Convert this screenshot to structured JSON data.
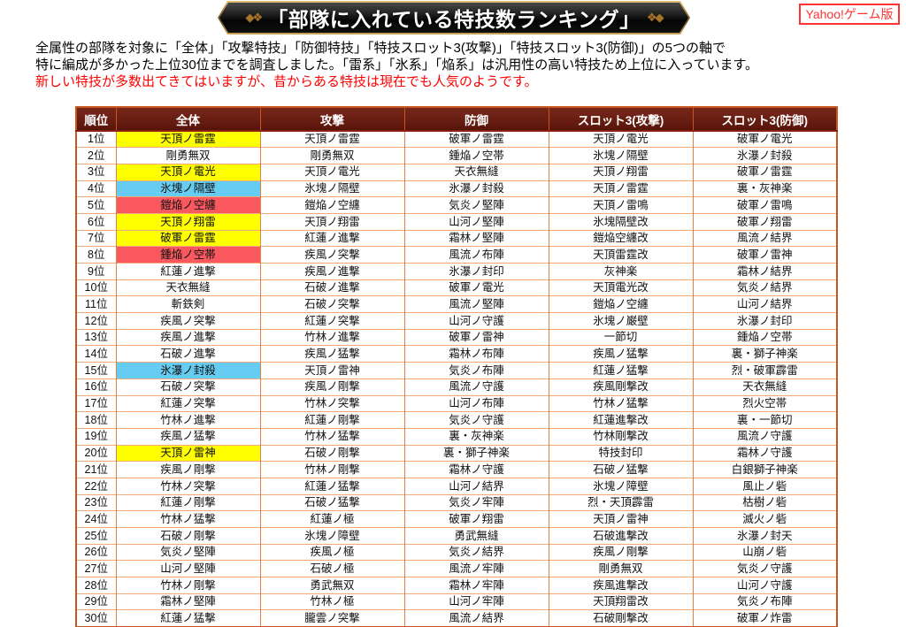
{
  "banner": {
    "title": "「部隊に入れている特技数ランキング」",
    "left_ornament": "◆❖",
    "right_ornament": "❖◆",
    "badge": "Yahoo!ゲーム版"
  },
  "intro": {
    "line1": "全属性の部隊を対象に「全体」「攻撃特技」「防御特技」「特技スロット3(攻撃)」「特技スロット3(防御)」の5つの軸で",
    "line2": "特に編成が多かった上位30位までを調査しました。「雷系」「氷系」「焔系」は汎用性の高い特技ため上位に入っています。",
    "line3": "新しい特技が多数出てきてはいますが、昔からある特技は現在でも人気のようです。"
  },
  "colors": {
    "header_bg": "#641b10",
    "border_outer": "#c8571f",
    "border_vertical": "#e07f40",
    "border_horizontal": "#f2ab76",
    "badge_red": "#ff3333",
    "intro_red": "#ff0000",
    "highlight_yellow": "#ffff00",
    "highlight_blue": "#66ccf2",
    "highlight_red": "#f8585e"
  },
  "table": {
    "headers": [
      "順位",
      "全体",
      "攻撃",
      "防御",
      "スロット3(攻撃)",
      "スロット3(防御)"
    ],
    "rows": [
      {
        "rank": "1位",
        "overall": "天頂ノ雷霆",
        "highlight": "yellow",
        "attack": "天頂ノ雷霆",
        "defense": "破軍ノ雷霆",
        "slot3_attack": "天頂ノ電光",
        "slot3_defense": "破軍ノ電光"
      },
      {
        "rank": "2位",
        "overall": "剛勇無双",
        "highlight": "",
        "attack": "剛勇無双",
        "defense": "鍾焔ノ空帯",
        "slot3_attack": "氷塊ノ隔壁",
        "slot3_defense": "氷瀑ノ封殺"
      },
      {
        "rank": "3位",
        "overall": "天頂ノ電光",
        "highlight": "yellow",
        "attack": "天頂ノ電光",
        "defense": "天衣無縫",
        "slot3_attack": "天頂ノ翔雷",
        "slot3_defense": "破軍ノ雷霆"
      },
      {
        "rank": "4位",
        "overall": "氷塊ノ隔壁",
        "highlight": "blue",
        "attack": "氷塊ノ隔壁",
        "defense": "氷瀑ノ封殺",
        "slot3_attack": "天頂ノ雷霆",
        "slot3_defense": "裏・灰神楽"
      },
      {
        "rank": "5位",
        "overall": "鎧焔ノ空纏",
        "highlight": "red",
        "attack": "鎧焔ノ空纏",
        "defense": "気炎ノ堅陣",
        "slot3_attack": "天頂ノ雷鳴",
        "slot3_defense": "破軍ノ雷鳴"
      },
      {
        "rank": "6位",
        "overall": "天頂ノ翔雷",
        "highlight": "yellow",
        "attack": "天頂ノ翔雷",
        "defense": "山河ノ堅陣",
        "slot3_attack": "氷塊隔壁改",
        "slot3_defense": "破軍ノ翔雷"
      },
      {
        "rank": "7位",
        "overall": "破軍ノ雷霆",
        "highlight": "yellow",
        "attack": "紅蓮ノ進撃",
        "defense": "霜林ノ堅陣",
        "slot3_attack": "鎧焔空纏改",
        "slot3_defense": "風流ノ結界"
      },
      {
        "rank": "8位",
        "overall": "鍾焔ノ空帯",
        "highlight": "red",
        "attack": "疾風ノ突撃",
        "defense": "風流ノ布陣",
        "slot3_attack": "天頂雷霆改",
        "slot3_defense": "破軍ノ雷神"
      },
      {
        "rank": "9位",
        "overall": "紅蓮ノ進撃",
        "highlight": "",
        "attack": "疾風ノ進撃",
        "defense": "氷瀑ノ封印",
        "slot3_attack": "灰神楽",
        "slot3_defense": "霜林ノ結界"
      },
      {
        "rank": "10位",
        "overall": "天衣無縫",
        "highlight": "",
        "attack": "石破ノ進撃",
        "defense": "破軍ノ電光",
        "slot3_attack": "天頂電光改",
        "slot3_defense": "気炎ノ結界"
      },
      {
        "rank": "11位",
        "overall": "斬鉄剣",
        "highlight": "",
        "attack": "石破ノ突撃",
        "defense": "風流ノ堅陣",
        "slot3_attack": "鎧焔ノ空纏",
        "slot3_defense": "山河ノ結界"
      },
      {
        "rank": "12位",
        "overall": "疾風ノ突撃",
        "highlight": "",
        "attack": "紅蓮ノ突撃",
        "defense": "山河ノ守護",
        "slot3_attack": "氷塊ノ巌壁",
        "slot3_defense": "氷瀑ノ封印"
      },
      {
        "rank": "13位",
        "overall": "疾風ノ進撃",
        "highlight": "",
        "attack": "竹林ノ進撃",
        "defense": "破軍ノ雷神",
        "slot3_attack": "一節切",
        "slot3_defense": "鍾焔ノ空帯"
      },
      {
        "rank": "14位",
        "overall": "石破ノ進撃",
        "highlight": "",
        "attack": "疾風ノ猛撃",
        "defense": "霜林ノ布陣",
        "slot3_attack": "疾風ノ猛撃",
        "slot3_defense": "裏・獅子神楽"
      },
      {
        "rank": "15位",
        "overall": "氷瀑ノ封殺",
        "highlight": "blue",
        "attack": "天頂ノ雷神",
        "defense": "気炎ノ布陣",
        "slot3_attack": "紅蓮ノ猛撃",
        "slot3_defense": "烈・破軍霹雷"
      },
      {
        "rank": "16位",
        "overall": "石破ノ突撃",
        "highlight": "",
        "attack": "疾風ノ剛撃",
        "defense": "風流ノ守護",
        "slot3_attack": "疾風剛撃改",
        "slot3_defense": "天衣無縫"
      },
      {
        "rank": "17位",
        "overall": "紅蓮ノ突撃",
        "highlight": "",
        "attack": "竹林ノ突撃",
        "defense": "山河ノ布陣",
        "slot3_attack": "竹林ノ猛撃",
        "slot3_defense": "烈火空帯"
      },
      {
        "rank": "18位",
        "overall": "竹林ノ進撃",
        "highlight": "",
        "attack": "紅蓮ノ剛撃",
        "defense": "気炎ノ守護",
        "slot3_attack": "紅蓮進撃改",
        "slot3_defense": "裏・一節切"
      },
      {
        "rank": "19位",
        "overall": "疾風ノ猛撃",
        "highlight": "",
        "attack": "竹林ノ猛撃",
        "defense": "裏・灰神楽",
        "slot3_attack": "竹林剛撃改",
        "slot3_defense": "風流ノ守護"
      },
      {
        "rank": "20位",
        "overall": "天頂ノ雷神",
        "highlight": "yellow",
        "attack": "石破ノ剛撃",
        "defense": "裏・獅子神楽",
        "slot3_attack": "特技封印",
        "slot3_defense": "霜林ノ守護"
      },
      {
        "rank": "21位",
        "overall": "疾風ノ剛撃",
        "highlight": "",
        "attack": "竹林ノ剛撃",
        "defense": "霜林ノ守護",
        "slot3_attack": "石破ノ猛撃",
        "slot3_defense": "白銀獅子神楽"
      },
      {
        "rank": "22位",
        "overall": "竹林ノ突撃",
        "highlight": "",
        "attack": "紅蓮ノ猛撃",
        "defense": "山河ノ結界",
        "slot3_attack": "氷塊ノ障壁",
        "slot3_defense": "風止ノ砦"
      },
      {
        "rank": "23位",
        "overall": "紅蓮ノ剛撃",
        "highlight": "",
        "attack": "石破ノ猛撃",
        "defense": "気炎ノ牢陣",
        "slot3_attack": "烈・天頂霹雷",
        "slot3_defense": "枯樹ノ砦"
      },
      {
        "rank": "24位",
        "overall": "竹林ノ猛撃",
        "highlight": "",
        "attack": "紅蓮ノ極",
        "defense": "破軍ノ翔雷",
        "slot3_attack": "天頂ノ雷神",
        "slot3_defense": "滅火ノ砦"
      },
      {
        "rank": "25位",
        "overall": "石破ノ剛撃",
        "highlight": "",
        "attack": "氷塊ノ障壁",
        "defense": "勇武無縫",
        "slot3_attack": "石破進撃改",
        "slot3_defense": "氷瀑ノ封天"
      },
      {
        "rank": "26位",
        "overall": "気炎ノ堅陣",
        "highlight": "",
        "attack": "疾風ノ極",
        "defense": "気炎ノ結界",
        "slot3_attack": "疾風ノ剛撃",
        "slot3_defense": "山崩ノ砦"
      },
      {
        "rank": "27位",
        "overall": "山河ノ堅陣",
        "highlight": "",
        "attack": "石破ノ極",
        "defense": "風流ノ牢陣",
        "slot3_attack": "剛勇無双",
        "slot3_defense": "気炎ノ守護"
      },
      {
        "rank": "28位",
        "overall": "竹林ノ剛撃",
        "highlight": "",
        "attack": "勇武無双",
        "defense": "霜林ノ牢陣",
        "slot3_attack": "疾風進撃改",
        "slot3_defense": "山河ノ守護"
      },
      {
        "rank": "29位",
        "overall": "霜林ノ堅陣",
        "highlight": "",
        "attack": "竹林ノ極",
        "defense": "山河ノ牢陣",
        "slot3_attack": "天頂翔雷改",
        "slot3_defense": "気炎ノ布陣"
      },
      {
        "rank": "30位",
        "overall": "紅蓮ノ猛撃",
        "highlight": "",
        "attack": "朧雲ノ突撃",
        "defense": "風流ノ結界",
        "slot3_attack": "石破剛撃改",
        "slot3_defense": "破軍ノ炸雷"
      }
    ]
  }
}
